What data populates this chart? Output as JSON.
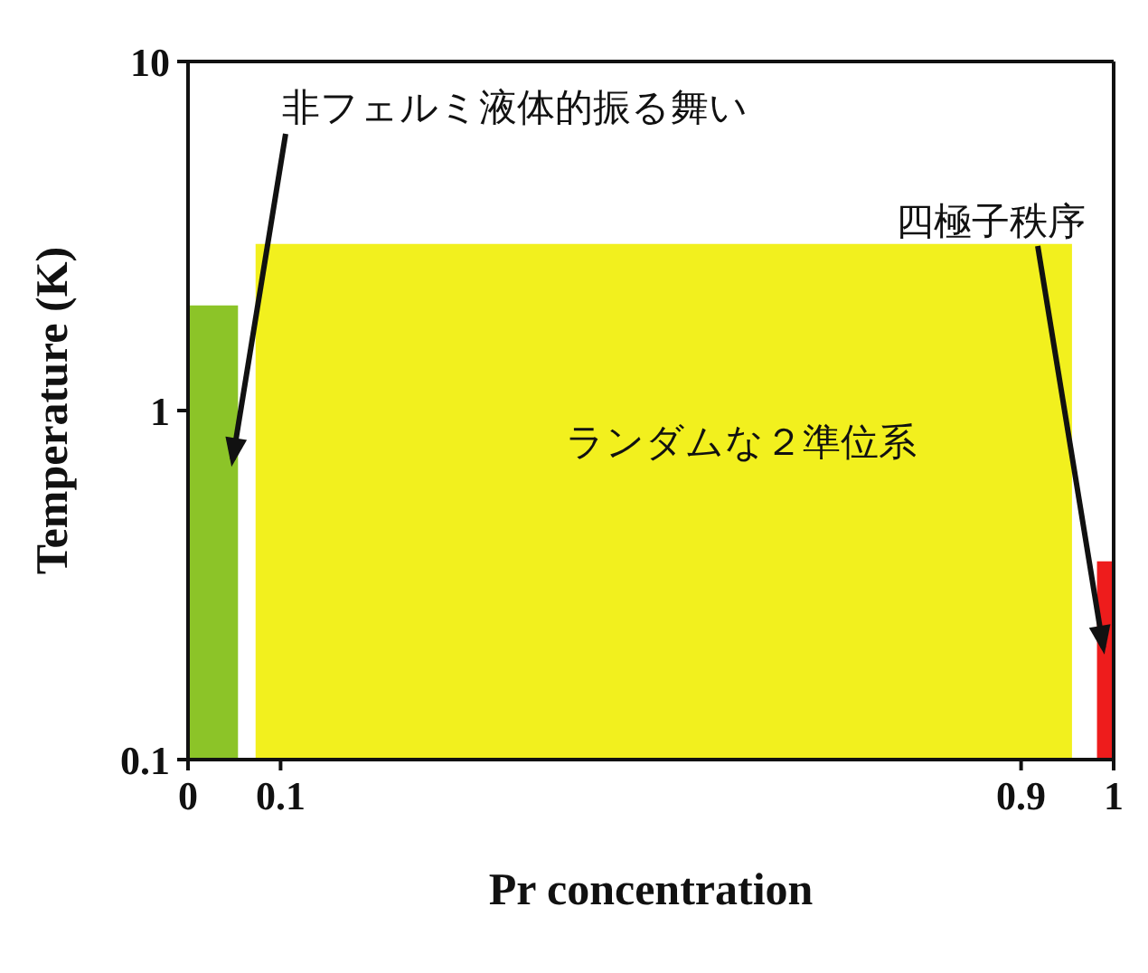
{
  "chart_data": {
    "type": "area",
    "xlabel": "Pr concentration",
    "ylabel": "Temperature (K)",
    "log": "y",
    "xlim": [
      0,
      1
    ],
    "xticks": [
      0,
      0.1,
      0.9,
      1
    ],
    "ylim": [
      0.1,
      10
    ],
    "yticks": [
      0.1,
      1,
      10
    ],
    "series": [
      {
        "color": "#8cc428",
        "x": [
          0,
          0.054
        ],
        "values": [
          2,
          2
        ]
      },
      {
        "color": "#f2f01e",
        "x": [
          0.073,
          0.955
        ],
        "values": [
          3,
          3
        ]
      },
      {
        "color": "#ee1c1c",
        "x": [
          0.982,
          1
        ],
        "values": [
          0.37,
          0.37
        ]
      }
    ],
    "annotations": [
      {
        "text": "非フェルミ液体的振る舞い",
        "x": 0.047,
        "y": 0.69
      },
      "ランダムな２準位系",
      {
        "text": "四極子秩序",
        "x": 0.99,
        "y": 0.2
      }
    ]
  }
}
